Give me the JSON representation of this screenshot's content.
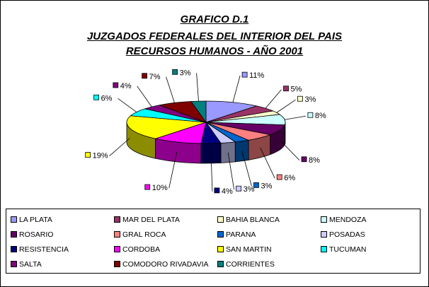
{
  "chart_data": {
    "type": "pie",
    "title_lines": [
      "GRAFICO D.1",
      "JUZGADOS FEDERALES DEL INTERIOR DEL PAIS",
      "RECURSOS HUMANOS - AÑO 2001"
    ],
    "slices": [
      {
        "name": "LA PLATA",
        "value": 11,
        "label": "11%",
        "color": "#9999FF"
      },
      {
        "name": "MAR DEL PLATA",
        "value": 5,
        "label": "5%",
        "color": "#993366"
      },
      {
        "name": "BAHIA BLANCA",
        "value": 3,
        "label": "3%",
        "color": "#FFFFCC"
      },
      {
        "name": "MENDOZA",
        "value": 8,
        "label": "8%",
        "color": "#CCFFFF"
      },
      {
        "name": "ROSARIO",
        "value": 8,
        "label": "8%",
        "color": "#660066"
      },
      {
        "name": "GRAL ROCA",
        "value": 6,
        "label": "6%",
        "color": "#FF8080"
      },
      {
        "name": "PARANA",
        "value": 3,
        "label": "3%",
        "color": "#0066CC"
      },
      {
        "name": "POSADAS",
        "value": 3,
        "label": "3%",
        "color": "#CCCCFF"
      },
      {
        "name": "RESISTENCIA",
        "value": 4,
        "label": "4%",
        "color": "#000080"
      },
      {
        "name": "CORDOBA",
        "value": 10,
        "label": "10%",
        "color": "#FF00FF"
      },
      {
        "name": "SAN MARTIN",
        "value": 19,
        "label": "19%",
        "color": "#FFFF00"
      },
      {
        "name": "TUCUMAN",
        "value": 6,
        "label": "6%",
        "color": "#00FFFF"
      },
      {
        "name": "SALTA",
        "value": 4,
        "label": "4%",
        "color": "#800080"
      },
      {
        "name": "COMODORO RIVADAVIA",
        "value": 7,
        "label": "7%",
        "color": "#800000"
      },
      {
        "name": "CORRIENTES",
        "value": 3,
        "label": "3%",
        "color": "#008080"
      }
    ],
    "legend_position": "bottom"
  }
}
